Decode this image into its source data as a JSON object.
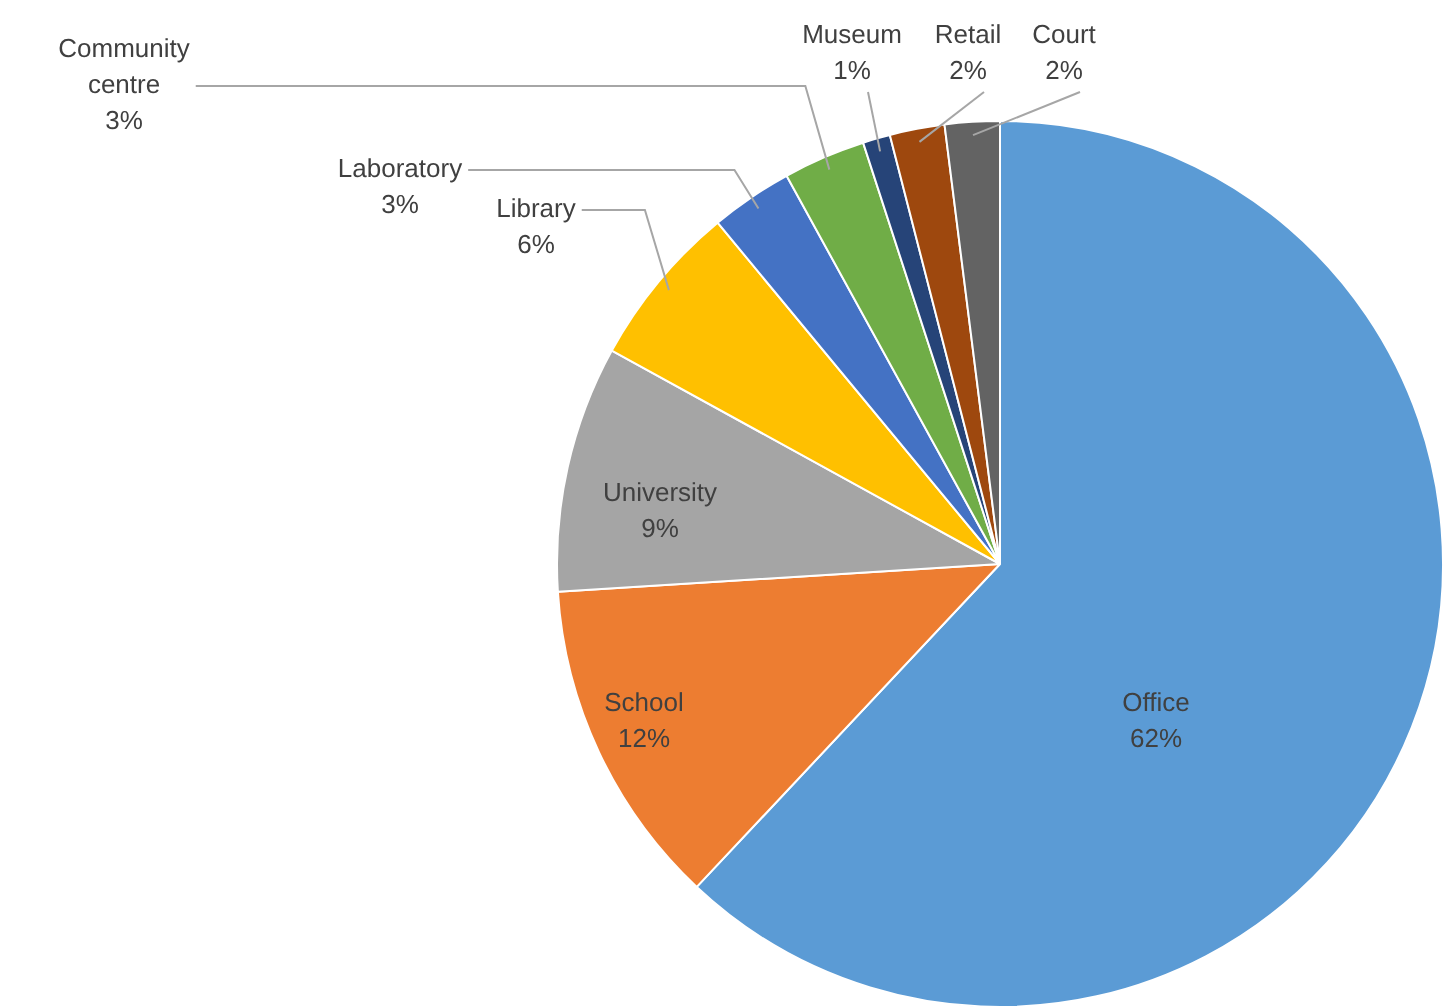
{
  "chart_data": {
    "type": "pie",
    "categories": [
      "Office",
      "School",
      "University",
      "Library",
      "Laboratory",
      "Community centre",
      "Museum",
      "Retail",
      "Court"
    ],
    "values": [
      62,
      12,
      9,
      6,
      3,
      3,
      1,
      2,
      2
    ],
    "value_labels": [
      "62%",
      "12%",
      "9%",
      "6%",
      "3%",
      "3%",
      "1%",
      "2%",
      "2%"
    ],
    "colors": [
      "#5b9bd5",
      "#ed7d31",
      "#a5a5a5",
      "#ffc000",
      "#4472c4",
      "#70ad47",
      "#264478",
      "#9e480e",
      "#636363"
    ],
    "legend": false
  }
}
